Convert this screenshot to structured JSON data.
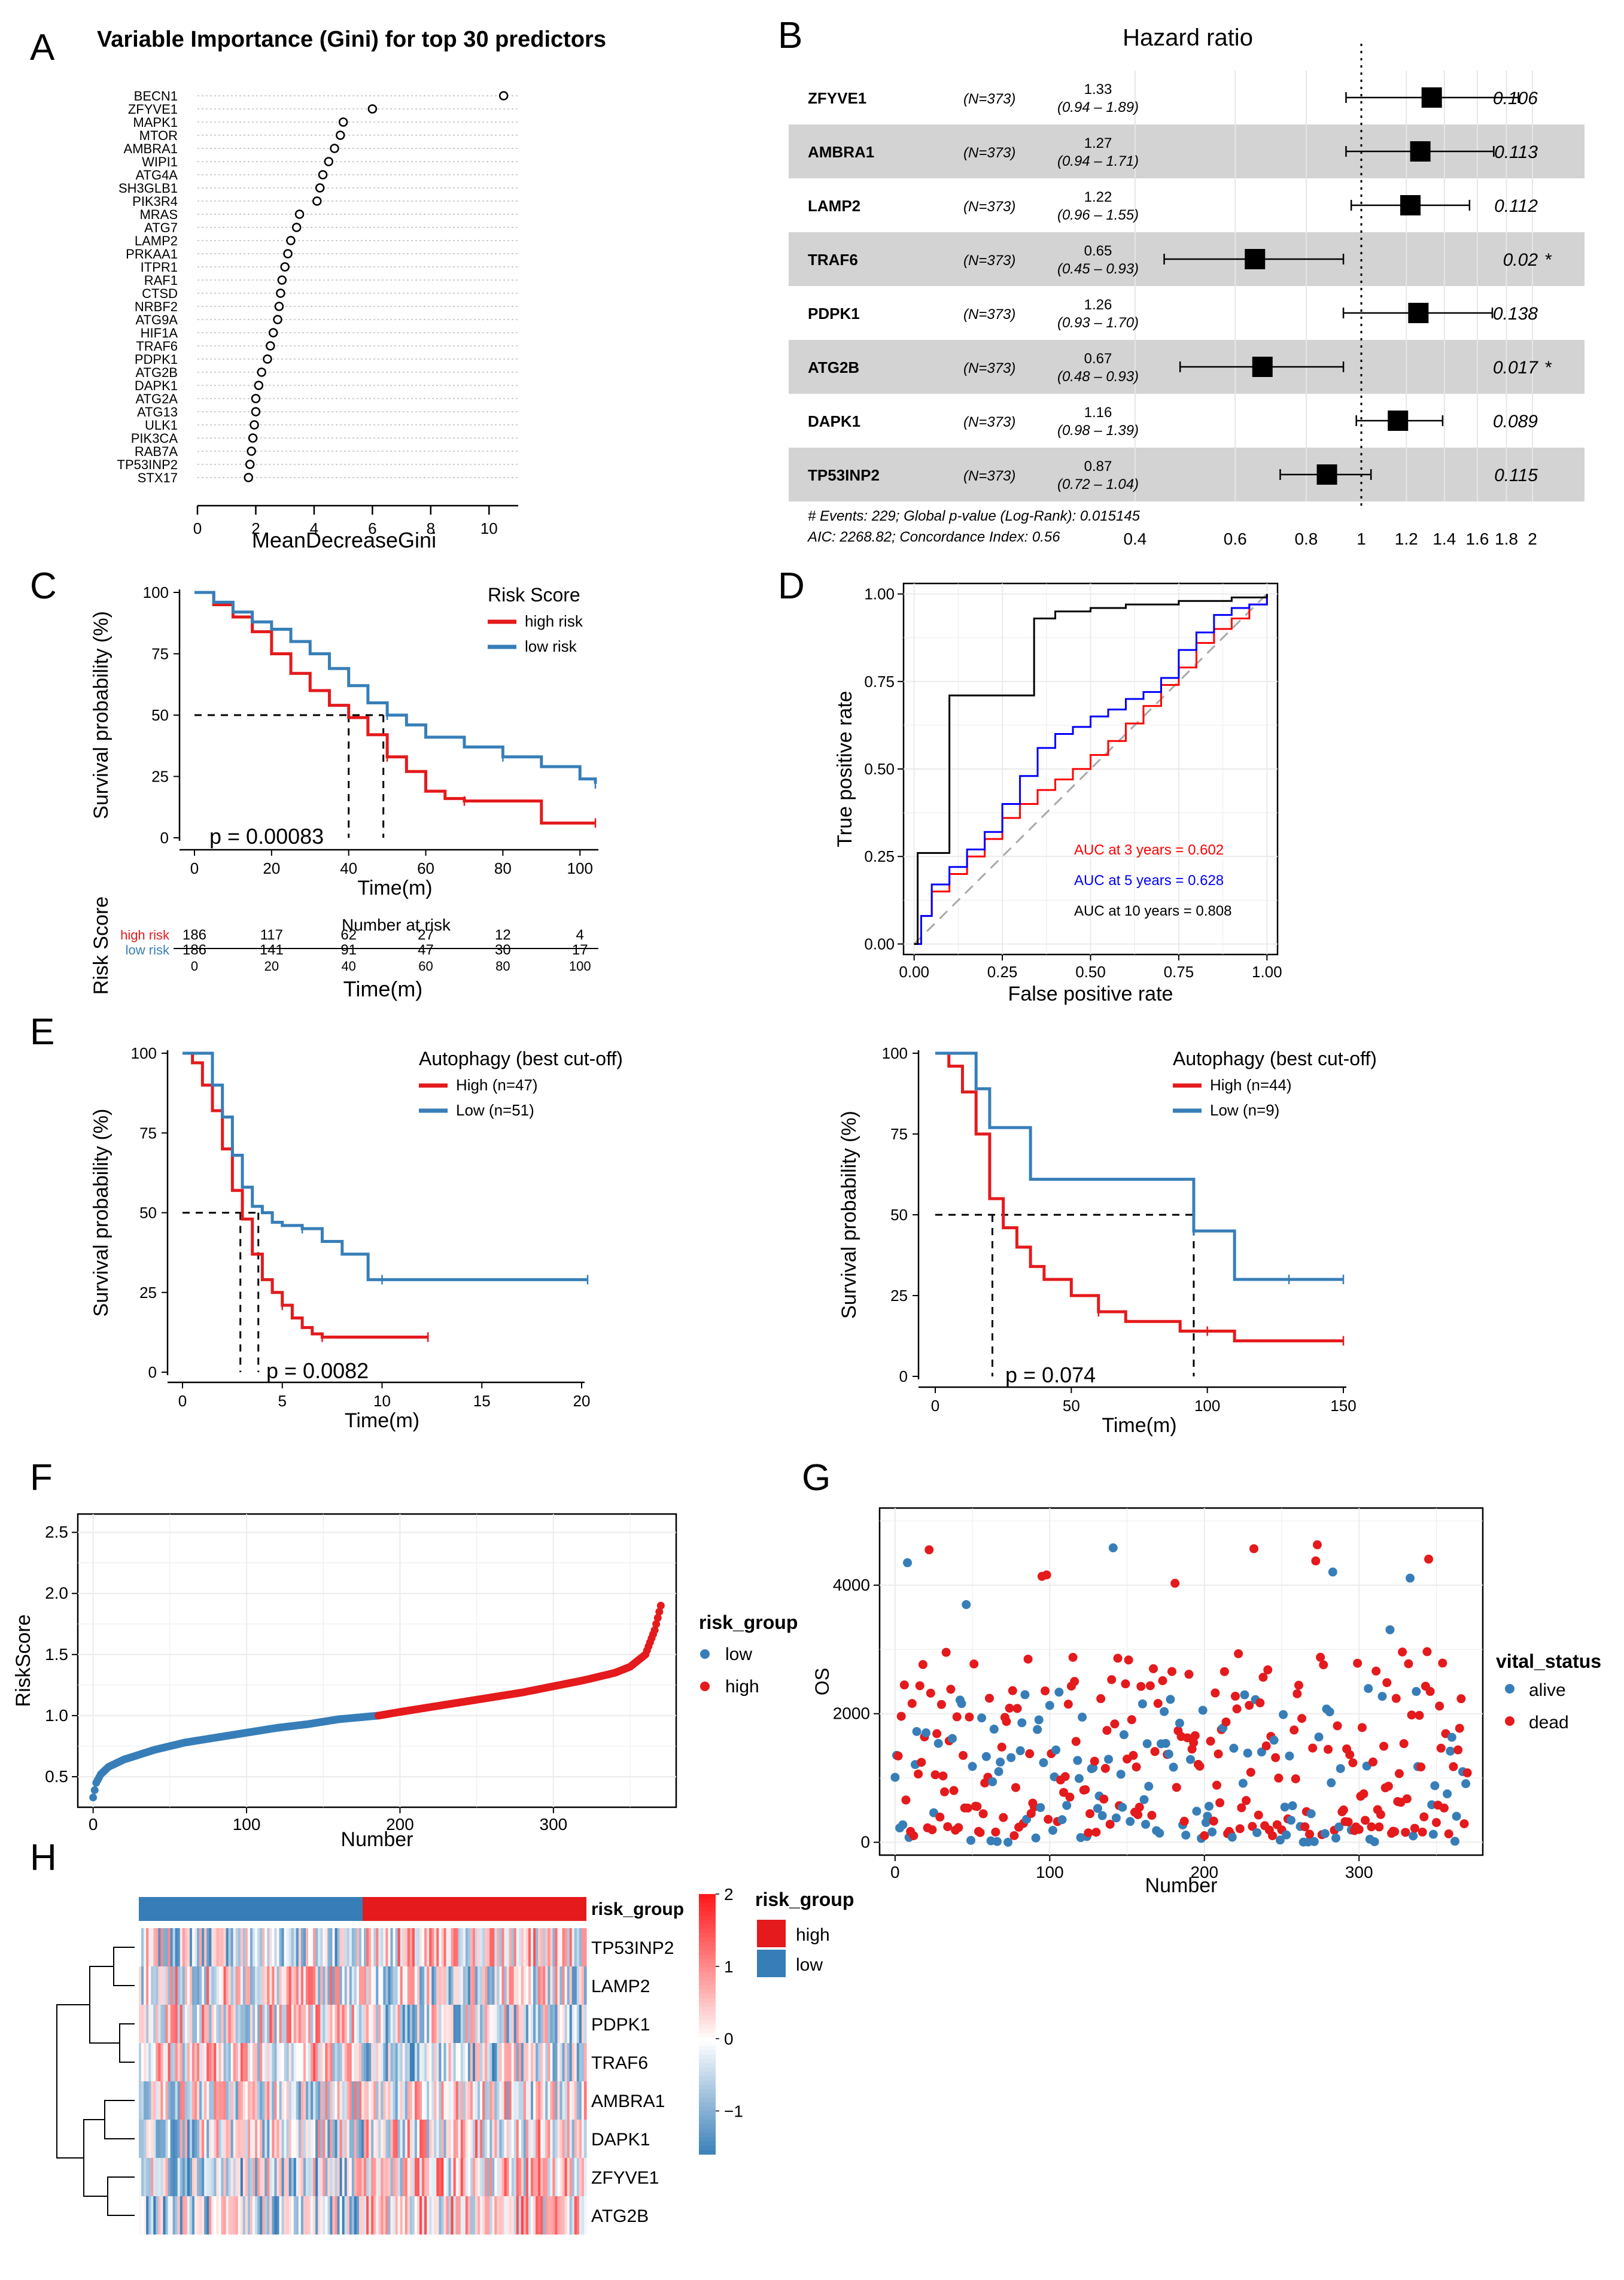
{
  "colors": {
    "red": "#e41a1c",
    "blue": "#377eb8",
    "black": "#000000",
    "grey": "#d3d3d3",
    "gridline": "#ebebeb",
    "roc_blue": "#0000ff",
    "roc_red": "#ff0000"
  },
  "panel_labels": [
    "A",
    "B",
    "C",
    "D",
    "E",
    "F",
    "G",
    "H"
  ],
  "chart_data": [
    {
      "panel": "A",
      "type": "scatter",
      "title": "Variable Importance (Gini) for top 30 predictors",
      "xlabel": "MeanDecreaseGini",
      "xlim": [
        0,
        11
      ],
      "xticks": [
        "0",
        "2",
        "4",
        "6",
        "8",
        "10"
      ],
      "categories": [
        "BECN1",
        "ZFYVE1",
        "MAPK1",
        "MTOR",
        "AMBRA1",
        "WIPI1",
        "ATG4A",
        "SH3GLB1",
        "PIK3R4",
        "MRAS",
        "ATG7",
        "LAMP2",
        "PRKAA1",
        "ITPR1",
        "RAF1",
        "CTSD",
        "NRBF2",
        "ATG9A",
        "HIF1A",
        "TRAF6",
        "PDPK1",
        "ATG2B",
        "DAPK1",
        "ATG2A",
        "ATG13",
        "ULK1",
        "PIK3CA",
        "RAB7A",
        "TP53INP2",
        "STX17"
      ],
      "values": [
        10.5,
        6.0,
        5.0,
        4.9,
        4.7,
        4.5,
        4.3,
        4.2,
        4.1,
        3.5,
        3.4,
        3.2,
        3.1,
        3.0,
        2.9,
        2.85,
        2.8,
        2.75,
        2.6,
        2.5,
        2.4,
        2.2,
        2.1,
        2.0,
        2.0,
        1.95,
        1.9,
        1.85,
        1.8,
        1.75
      ]
    },
    {
      "panel": "B",
      "type": "forest",
      "title": "Hazard ratio",
      "rows": [
        {
          "gene": "ZFYVE1",
          "n": "(N=373)",
          "hr": "1.33",
          "ci": "(0.94 – 1.89)",
          "p": "0.106",
          "star": "",
          "hr_v": 1.33,
          "lo": 0.94,
          "hi": 1.89
        },
        {
          "gene": "AMBRA1",
          "n": "(N=373)",
          "hr": "1.27",
          "ci": "(0.94 – 1.71)",
          "p": "0.113",
          "star": "",
          "hr_v": 1.27,
          "lo": 0.94,
          "hi": 1.71
        },
        {
          "gene": "LAMP2",
          "n": "(N=373)",
          "hr": "1.22",
          "ci": "(0.96 – 1.55)",
          "p": "0.112",
          "star": "",
          "hr_v": 1.22,
          "lo": 0.96,
          "hi": 1.55
        },
        {
          "gene": "TRAF6",
          "n": "(N=373)",
          "hr": "0.65",
          "ci": "(0.45 – 0.93)",
          "p": "0.02",
          "star": "*",
          "hr_v": 0.65,
          "lo": 0.45,
          "hi": 0.93
        },
        {
          "gene": "PDPK1",
          "n": "(N=373)",
          "hr": "1.26",
          "ci": "(0.93 – 1.70)",
          "p": "0.138",
          "star": "",
          "hr_v": 1.26,
          "lo": 0.93,
          "hi": 1.7
        },
        {
          "gene": "ATG2B",
          "n": "(N=373)",
          "hr": "0.67",
          "ci": "(0.48 – 0.93)",
          "p": "0.017",
          "star": "*",
          "hr_v": 0.67,
          "lo": 0.48,
          "hi": 0.93
        },
        {
          "gene": "DAPK1",
          "n": "(N=373)",
          "hr": "1.16",
          "ci": "(0.98 – 1.39)",
          "p": "0.089",
          "star": "",
          "hr_v": 1.16,
          "lo": 0.98,
          "hi": 1.39
        },
        {
          "gene": "TP53INP2",
          "n": "(N=373)",
          "hr": "0.87",
          "ci": "(0.72 – 1.04)",
          "p": "0.115",
          "star": "",
          "hr_v": 0.87,
          "lo": 0.72,
          "hi": 1.04
        }
      ],
      "footnote1": "# Events: 229; Global p-value (Log-Rank): 0.015145",
      "footnote2": "AIC: 2268.82; Concordance Index: 0.56",
      "xticks": [
        "0.4",
        "0.6",
        "0.8",
        "1",
        "1.2",
        "1.4",
        "1.6",
        "1.8",
        "2"
      ]
    },
    {
      "panel": "C",
      "type": "line",
      "ylabel": "Survival probability (%)",
      "xlabel": "Time(m)",
      "legend_title": "Risk Score",
      "pvalue": "p = 0.00083",
      "xlim": [
        0,
        104
      ],
      "ylim": [
        0,
        100
      ],
      "xticks": [
        "0",
        "20",
        "40",
        "60",
        "80",
        "100"
      ],
      "yticks": [
        "0",
        "25",
        "50",
        "75",
        "100"
      ],
      "series": [
        {
          "name": "high risk",
          "x": [
            0,
            5,
            10,
            15,
            20,
            25,
            30,
            35,
            40,
            45,
            50,
            55,
            60,
            65,
            70,
            80,
            90,
            104
          ],
          "y": [
            100,
            95,
            90,
            84,
            75,
            67,
            60,
            54,
            49,
            42,
            33,
            27,
            19,
            16,
            15,
            15,
            6,
            6
          ]
        },
        {
          "name": "low risk",
          "x": [
            0,
            5,
            10,
            15,
            20,
            25,
            30,
            35,
            40,
            45,
            50,
            55,
            60,
            70,
            80,
            90,
            100,
            104
          ],
          "y": [
            100,
            96,
            92,
            88,
            85,
            80,
            75,
            69,
            62,
            55,
            50,
            46,
            41,
            37,
            33,
            29,
            24,
            22
          ]
        }
      ],
      "medians": [
        40,
        49
      ],
      "risk_table": {
        "title": "Number at risk",
        "ylabel": "Risk Score",
        "xlabel": "Time(m)",
        "rows": [
          {
            "label": "high risk",
            "values": [
              "186",
              "117",
              "62",
              "27",
              "12",
              "4"
            ]
          },
          {
            "label": "low risk",
            "values": [
              "186",
              "141",
              "91",
              "47",
              "30",
              "17"
            ]
          }
        ],
        "xticks": [
          "0",
          "20",
          "40",
          "60",
          "80",
          "100"
        ]
      }
    },
    {
      "panel": "D",
      "type": "line",
      "xlabel": "False positive rate",
      "ylabel": "True positive rate",
      "xlim": [
        0,
        1
      ],
      "ylim": [
        0,
        1
      ],
      "xticks": [
        "0.00",
        "0.25",
        "0.50",
        "0.75",
        "1.00"
      ],
      "yticks": [
        "0.00",
        "0.25",
        "0.50",
        "0.75",
        "1.00"
      ],
      "series": [
        {
          "name": "AUC at 3 years = 0.602",
          "x": [
            0,
            0.02,
            0.05,
            0.1,
            0.15,
            0.2,
            0.25,
            0.3,
            0.35,
            0.4,
            0.45,
            0.5,
            0.55,
            0.6,
            0.65,
            0.7,
            0.75,
            0.8,
            0.85,
            0.9,
            0.95,
            1
          ],
          "y": [
            0,
            0.08,
            0.15,
            0.2,
            0.25,
            0.3,
            0.36,
            0.4,
            0.44,
            0.47,
            0.5,
            0.54,
            0.58,
            0.63,
            0.68,
            0.74,
            0.79,
            0.86,
            0.9,
            0.93,
            0.97,
            1
          ]
        },
        {
          "name": "AUC at 5 years = 0.628",
          "x": [
            0,
            0.02,
            0.05,
            0.1,
            0.15,
            0.2,
            0.25,
            0.3,
            0.35,
            0.4,
            0.45,
            0.5,
            0.55,
            0.6,
            0.65,
            0.7,
            0.75,
            0.8,
            0.85,
            0.9,
            0.95,
            1
          ],
          "y": [
            0,
            0.08,
            0.17,
            0.22,
            0.27,
            0.32,
            0.4,
            0.48,
            0.56,
            0.6,
            0.62,
            0.65,
            0.67,
            0.7,
            0.72,
            0.76,
            0.84,
            0.89,
            0.94,
            0.96,
            0.97,
            1
          ]
        },
        {
          "name": "AUC at 10 years = 0.808",
          "x": [
            0,
            0.01,
            0.06,
            0.1,
            0.2,
            0.3,
            0.34,
            0.4,
            0.5,
            0.6,
            0.7,
            0.75,
            0.8,
            0.9,
            1
          ],
          "y": [
            0,
            0.26,
            0.26,
            0.71,
            0.71,
            0.71,
            0.93,
            0.95,
            0.96,
            0.97,
            0.97,
            0.98,
            0.98,
            0.99,
            1
          ]
        }
      ]
    },
    {
      "panel": "E1",
      "type": "line",
      "ylabel": "Survival probability (%)",
      "xlabel": "Time(m)",
      "legend_title": "Autophagy (best cut-off)",
      "pvalue": "p = 0.0082",
      "xlim": [
        0,
        20
      ],
      "ylim": [
        0,
        100
      ],
      "xticks": [
        "0",
        "5",
        "10",
        "15",
        "20"
      ],
      "yticks": [
        "0",
        "25",
        "50",
        "75",
        "100"
      ],
      "series": [
        {
          "name": "High (n=47)",
          "x": [
            0,
            0.5,
            1,
            1.5,
            2,
            2.5,
            3,
            3.5,
            4,
            4.5,
            5,
            5.5,
            6,
            6.5,
            7,
            8,
            10,
            12.3
          ],
          "y": [
            100,
            97,
            90,
            82,
            70,
            57,
            48,
            37,
            29,
            25,
            21,
            17,
            14,
            12,
            11,
            11,
            11,
            11
          ]
        },
        {
          "name": "Low (n=51)",
          "x": [
            0,
            1,
            1.5,
            2,
            2.5,
            3,
            3.5,
            4,
            4.5,
            5,
            6,
            7,
            8,
            9.3,
            10,
            12,
            15,
            20.3
          ],
          "y": [
            100,
            100,
            90,
            80,
            68,
            58,
            52,
            50,
            47,
            46,
            45,
            41,
            37,
            29,
            29,
            29,
            29,
            29
          ]
        }
      ],
      "medians": [
        2.9,
        3.8
      ]
    },
    {
      "panel": "E2",
      "type": "line",
      "ylabel": "Survival probability (%)",
      "xlabel": "Time(m)",
      "legend_title": "Autophagy (best cut-off)",
      "pvalue": "p = 0.074",
      "xlim": [
        0,
        150
      ],
      "ylim": [
        0,
        100
      ],
      "xticks": [
        "0",
        "50",
        "100",
        "150"
      ],
      "yticks": [
        "0",
        "25",
        "50",
        "75",
        "100"
      ],
      "series": [
        {
          "name": "High (n=44)",
          "x": [
            0,
            5,
            10,
            15,
            20,
            25,
            30,
            35,
            40,
            50,
            60,
            70,
            80,
            90,
            100,
            110,
            120,
            150
          ],
          "y": [
            100,
            96,
            88,
            75,
            55,
            46,
            40,
            34,
            30,
            25,
            20,
            17,
            17,
            14,
            14,
            11,
            11,
            11
          ]
        },
        {
          "name": "Low (n=9)",
          "x": [
            0,
            15,
            20,
            35,
            50,
            80,
            95,
            110,
            130,
            150
          ],
          "y": [
            100,
            89,
            77,
            61,
            61,
            61,
            45,
            30,
            30,
            30
          ]
        }
      ],
      "medians": [
        21,
        95
      ]
    },
    {
      "panel": "F",
      "type": "scatter",
      "xlabel": "Number",
      "ylabel": "RiskScore",
      "legend_title": "risk_group",
      "legend": [
        "low",
        "high"
      ],
      "xlim": [
        -10,
        380
      ],
      "ylim": [
        0.25,
        2.65
      ],
      "xticks": [
        "0",
        "100",
        "200",
        "300"
      ],
      "yticks": [
        "0.5",
        "1.0",
        "1.5",
        "2.0",
        "2.5"
      ],
      "curve_x": [
        0,
        2,
        5,
        10,
        20,
        40,
        60,
        80,
        100,
        120,
        140,
        160,
        186,
        200,
        220,
        240,
        260,
        280,
        300,
        320,
        340,
        350,
        360,
        366,
        370
      ],
      "curve_y": [
        0.33,
        0.45,
        0.52,
        0.58,
        0.64,
        0.72,
        0.78,
        0.82,
        0.86,
        0.9,
        0.93,
        0.97,
        1.0,
        1.03,
        1.07,
        1.11,
        1.15,
        1.19,
        1.24,
        1.29,
        1.35,
        1.4,
        1.5,
        1.7,
        1.9
      ],
      "split": 186
    },
    {
      "panel": "G",
      "type": "scatter",
      "xlabel": "Number",
      "ylabel": "OS",
      "legend_title": "vital_status",
      "legend": [
        "alive",
        "dead"
      ],
      "xlim": [
        -10,
        380
      ],
      "ylim": [
        -200,
        5200
      ],
      "xticks": [
        "0",
        "100",
        "200",
        "300"
      ],
      "yticks": [
        "0",
        "2000",
        "4000"
      ]
    },
    {
      "panel": "H",
      "type": "heatmap",
      "rows": [
        "TP53INP2",
        "LAMP2",
        "PDPK1",
        "TRAF6",
        "AMBRA1",
        "DAPK1",
        "ZFYVE1",
        "ATG2B"
      ],
      "annotation_label": "risk_group",
      "legend_title": "risk_group",
      "legend": [
        "high",
        "low"
      ],
      "scale_ticks": [
        "2",
        "1",
        "0",
        "−1"
      ]
    }
  ]
}
